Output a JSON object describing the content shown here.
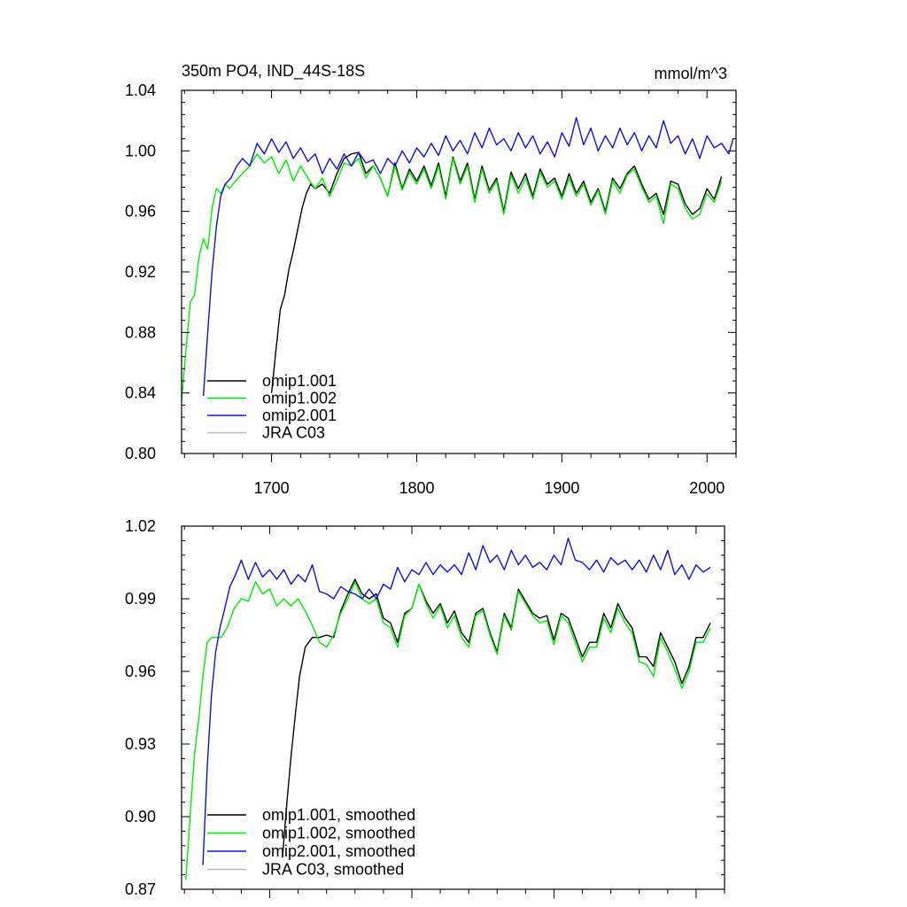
{
  "colors": {
    "omip1_001": "#000000",
    "omip1_002": "#00ee00",
    "omip2_001": "#1010dd",
    "jra_c03": "#bbbbbb",
    "axis": "#000000"
  },
  "chart_data": [
    {
      "type": "line",
      "title": "350m PO4, IND_44S-18S",
      "units_label": "mmol/m^3",
      "xlabel": "",
      "ylabel": "",
      "xlim": [
        1638,
        2020
      ],
      "ylim": [
        0.8,
        1.04
      ],
      "xticks": [
        1700,
        1800,
        1900,
        2000
      ],
      "xtick_labels": [
        "1700",
        "1800",
        "1900",
        "2000"
      ],
      "yticks": [
        0.8,
        0.84,
        0.88,
        0.92,
        0.96,
        1.0,
        1.04
      ],
      "ytick_labels": [
        "0.80",
        "0.84",
        "0.88",
        "0.92",
        "0.96",
        "1.00",
        "1.04"
      ],
      "grid": false,
      "legend_position": "bottom-left",
      "series": [
        {
          "name": "omip1.001",
          "color_key": "omip1_001",
          "x": [
            1700,
            1703,
            1706,
            1709,
            1712,
            1715,
            1718,
            1721,
            1724,
            1727,
            1730,
            1735,
            1740,
            1745,
            1750,
            1755,
            1760,
            1765,
            1770,
            1775,
            1780,
            1785,
            1790,
            1795,
            1800,
            1805,
            1810,
            1815,
            1820,
            1825,
            1830,
            1835,
            1840,
            1845,
            1850,
            1855,
            1860,
            1865,
            1870,
            1875,
            1880,
            1885,
            1890,
            1895,
            1900,
            1905,
            1910,
            1915,
            1920,
            1925,
            1930,
            1935,
            1940,
            1945,
            1950,
            1955,
            1960,
            1965,
            1970,
            1975,
            1980,
            1985,
            1990,
            1995,
            2000,
            2005,
            2010
          ],
          "y": [
            0.84,
            0.868,
            0.895,
            0.905,
            0.922,
            0.934,
            0.948,
            0.962,
            0.972,
            0.978,
            0.975,
            0.978,
            0.972,
            0.985,
            0.995,
            0.998,
            0.999,
            0.985,
            0.99,
            0.982,
            0.97,
            0.992,
            0.975,
            0.988,
            0.98,
            0.99,
            0.977,
            0.992,
            0.97,
            0.996,
            0.98,
            0.992,
            0.968,
            0.99,
            0.974,
            0.982,
            0.96,
            0.986,
            0.975,
            0.985,
            0.97,
            0.988,
            0.978,
            0.982,
            0.97,
            0.985,
            0.972,
            0.98,
            0.966,
            0.975,
            0.96,
            0.982,
            0.975,
            0.985,
            0.99,
            0.978,
            0.968,
            0.972,
            0.958,
            0.98,
            0.978,
            0.965,
            0.958,
            0.962,
            0.975,
            0.968,
            0.983
          ]
        },
        {
          "name": "omip1.002",
          "color_key": "omip1_002",
          "x": [
            1638,
            1641,
            1644,
            1647,
            1650,
            1653,
            1656,
            1659,
            1662,
            1665,
            1668,
            1671,
            1675,
            1680,
            1685,
            1690,
            1695,
            1700,
            1705,
            1710,
            1715,
            1720,
            1725,
            1730,
            1735,
            1740,
            1745,
            1750,
            1755,
            1760,
            1765,
            1770,
            1775,
            1780,
            1785,
            1790,
            1795,
            1800,
            1805,
            1810,
            1815,
            1820,
            1825,
            1830,
            1835,
            1840,
            1845,
            1850,
            1855,
            1860,
            1865,
            1870,
            1875,
            1880,
            1885,
            1890,
            1895,
            1900,
            1905,
            1910,
            1915,
            1920,
            1925,
            1930,
            1935,
            1940,
            1945,
            1950,
            1955,
            1960,
            1965,
            1970,
            1975,
            1980,
            1985,
            1990,
            1995,
            2000,
            2005,
            2010
          ],
          "y": [
            0.835,
            0.868,
            0.9,
            0.905,
            0.93,
            0.942,
            0.935,
            0.962,
            0.975,
            0.972,
            0.978,
            0.975,
            0.98,
            0.985,
            0.99,
            0.998,
            0.992,
            0.996,
            0.985,
            0.994,
            0.98,
            0.99,
            0.982,
            0.975,
            0.982,
            0.97,
            0.98,
            0.992,
            0.99,
            0.995,
            0.982,
            0.99,
            0.982,
            0.97,
            0.99,
            0.974,
            0.986,
            0.978,
            0.988,
            0.975,
            0.99,
            0.968,
            0.995,
            0.978,
            0.99,
            0.966,
            0.988,
            0.972,
            0.98,
            0.958,
            0.984,
            0.972,
            0.982,
            0.968,
            0.986,
            0.976,
            0.98,
            0.968,
            0.982,
            0.97,
            0.978,
            0.964,
            0.974,
            0.958,
            0.98,
            0.972,
            0.984,
            0.988,
            0.976,
            0.966,
            0.97,
            0.952,
            0.978,
            0.975,
            0.962,
            0.955,
            0.958,
            0.972,
            0.966,
            0.98
          ]
        },
        {
          "name": "omip2.001",
          "color_key": "omip2_001",
          "x": [
            1653,
            1656,
            1659,
            1662,
            1665,
            1668,
            1672,
            1676,
            1680,
            1685,
            1690,
            1695,
            1700,
            1705,
            1710,
            1715,
            1720,
            1725,
            1730,
            1735,
            1740,
            1745,
            1750,
            1755,
            1760,
            1765,
            1770,
            1775,
            1780,
            1785,
            1790,
            1795,
            1800,
            1805,
            1810,
            1815,
            1820,
            1825,
            1830,
            1835,
            1840,
            1845,
            1850,
            1855,
            1860,
            1865,
            1870,
            1875,
            1880,
            1885,
            1890,
            1895,
            1900,
            1905,
            1910,
            1915,
            1920,
            1925,
            1930,
            1935,
            1940,
            1945,
            1950,
            1955,
            1960,
            1965,
            1970,
            1975,
            1980,
            1985,
            1990,
            1995,
            2000,
            2005,
            2010,
            2015,
            2018
          ],
          "y": [
            0.838,
            0.88,
            0.92,
            0.95,
            0.97,
            0.978,
            0.982,
            0.99,
            0.995,
            0.99,
            1.005,
            0.998,
            1.008,
            0.999,
            1.006,
            0.995,
            1.002,
            0.993,
            0.998,
            0.985,
            0.995,
            0.988,
            0.998,
            0.99,
            0.999,
            0.992,
            0.994,
            0.985,
            0.995,
            0.99,
            1.0,
            0.992,
            1.002,
            0.996,
            1.005,
            0.997,
            1.01,
            1.0,
            1.007,
            0.998,
            1.012,
            1.002,
            1.015,
            1.004,
            1.008,
            1.0,
            1.012,
            1.002,
            1.01,
            0.998,
            1.006,
            0.996,
            1.012,
            1.003,
            1.022,
            1.004,
            1.015,
            1.0,
            1.01,
            1.002,
            1.015,
            1.004,
            1.012,
            1.0,
            1.01,
            1.002,
            1.02,
            1.005,
            1.01,
            0.998,
            1.008,
            0.995,
            1.01,
            1.002,
            1.005,
            0.998,
            1.008
          ]
        },
        {
          "name": "JRA C03",
          "color_key": "jra_c03",
          "x": [],
          "y": []
        }
      ]
    },
    {
      "type": "line",
      "title": "",
      "xlabel": "",
      "ylabel": "",
      "xlim": [
        1638,
        2020
      ],
      "ylim": [
        0.87,
        1.02
      ],
      "xticks": [
        1700,
        1800,
        1900,
        2000
      ],
      "xtick_labels": [],
      "yticks": [
        0.87,
        0.9,
        0.93,
        0.96,
        0.99,
        1.02
      ],
      "ytick_labels": [
        "0.87",
        "0.90",
        "0.93",
        "0.96",
        "0.99",
        "1.02"
      ],
      "grid": false,
      "legend_position": "bottom-left",
      "series": [
        {
          "name": "omip1.001, smoothed",
          "color_key": "omip1_001",
          "x": [
            1709,
            1712,
            1715,
            1718,
            1721,
            1725,
            1730,
            1735,
            1740,
            1745,
            1750,
            1755,
            1760,
            1765,
            1770,
            1775,
            1780,
            1785,
            1790,
            1795,
            1800,
            1805,
            1810,
            1815,
            1820,
            1825,
            1830,
            1835,
            1840,
            1845,
            1850,
            1855,
            1860,
            1865,
            1870,
            1875,
            1880,
            1885,
            1890,
            1895,
            1900,
            1905,
            1910,
            1915,
            1920,
            1925,
            1930,
            1935,
            1940,
            1945,
            1950,
            1955,
            1960,
            1965,
            1970,
            1975,
            1980,
            1985,
            1990,
            1995,
            2000,
            2005,
            2010
          ],
          "y": [
            0.883,
            0.905,
            0.925,
            0.942,
            0.958,
            0.97,
            0.974,
            0.974,
            0.975,
            0.974,
            0.985,
            0.992,
            0.998,
            0.992,
            0.99,
            0.992,
            0.982,
            0.98,
            0.972,
            0.984,
            0.986,
            0.996,
            0.989,
            0.984,
            0.988,
            0.98,
            0.985,
            0.976,
            0.972,
            0.984,
            0.986,
            0.976,
            0.968,
            0.984,
            0.978,
            0.994,
            0.989,
            0.984,
            0.982,
            0.983,
            0.973,
            0.984,
            0.982,
            0.974,
            0.966,
            0.972,
            0.972,
            0.984,
            0.978,
            0.988,
            0.982,
            0.978,
            0.966,
            0.966,
            0.962,
            0.976,
            0.97,
            0.964,
            0.955,
            0.962,
            0.974,
            0.974,
            0.98
          ]
        },
        {
          "name": "omip1.002, smoothed",
          "color_key": "omip1_002",
          "x": [
            1641,
            1644,
            1647,
            1650,
            1653,
            1656,
            1659,
            1662,
            1666,
            1670,
            1675,
            1680,
            1685,
            1690,
            1695,
            1700,
            1705,
            1710,
            1715,
            1720,
            1725,
            1730,
            1735,
            1740,
            1745,
            1750,
            1755,
            1760,
            1765,
            1770,
            1775,
            1780,
            1785,
            1790,
            1795,
            1800,
            1805,
            1810,
            1815,
            1820,
            1825,
            1830,
            1835,
            1840,
            1845,
            1850,
            1855,
            1860,
            1865,
            1870,
            1875,
            1880,
            1885,
            1890,
            1895,
            1900,
            1905,
            1910,
            1915,
            1920,
            1925,
            1930,
            1935,
            1940,
            1945,
            1950,
            1955,
            1960,
            1965,
            1970,
            1975,
            1980,
            1985,
            1990,
            1995,
            2000,
            2005,
            2010
          ],
          "y": [
            0.874,
            0.9,
            0.925,
            0.94,
            0.958,
            0.972,
            0.974,
            0.974,
            0.974,
            0.978,
            0.986,
            0.99,
            0.989,
            0.997,
            0.992,
            0.994,
            0.987,
            0.99,
            0.987,
            0.99,
            0.985,
            0.979,
            0.972,
            0.97,
            0.975,
            0.984,
            0.99,
            0.997,
            0.99,
            0.988,
            0.99,
            0.98,
            0.978,
            0.97,
            0.983,
            0.986,
            0.996,
            0.988,
            0.982,
            0.987,
            0.978,
            0.983,
            0.974,
            0.97,
            0.983,
            0.985,
            0.975,
            0.967,
            0.983,
            0.977,
            0.993,
            0.988,
            0.983,
            0.98,
            0.981,
            0.971,
            0.983,
            0.98,
            0.972,
            0.964,
            0.97,
            0.97,
            0.982,
            0.976,
            0.986,
            0.98,
            0.976,
            0.964,
            0.963,
            0.958,
            0.974,
            0.968,
            0.961,
            0.953,
            0.96,
            0.972,
            0.972,
            0.978
          ]
        },
        {
          "name": "omip2.001, smoothed",
          "color_key": "omip2_001",
          "x": [
            1653,
            1656,
            1659,
            1662,
            1665,
            1668,
            1672,
            1676,
            1680,
            1685,
            1690,
            1695,
            1700,
            1705,
            1710,
            1715,
            1720,
            1725,
            1730,
            1735,
            1740,
            1745,
            1750,
            1755,
            1760,
            1765,
            1770,
            1775,
            1780,
            1785,
            1790,
            1795,
            1800,
            1805,
            1810,
            1815,
            1820,
            1825,
            1830,
            1835,
            1840,
            1845,
            1850,
            1855,
            1860,
            1865,
            1870,
            1875,
            1880,
            1885,
            1890,
            1895,
            1900,
            1905,
            1910,
            1915,
            1920,
            1925,
            1930,
            1935,
            1940,
            1945,
            1950,
            1955,
            1960,
            1965,
            1970,
            1975,
            1980,
            1985,
            1990,
            1995,
            2000,
            2005,
            2010
          ],
          "y": [
            0.88,
            0.92,
            0.95,
            0.968,
            0.978,
            0.985,
            0.995,
            1.0,
            1.006,
            0.998,
            1.005,
            0.999,
            1.002,
            0.998,
            1.002,
            0.996,
            1.0,
            0.997,
            1.004,
            0.993,
            0.992,
            0.99,
            0.995,
            0.993,
            0.992,
            0.99,
            0.994,
            0.99,
            0.996,
            0.994,
            1.003,
            0.997,
            1.002,
            1.0,
            1.005,
            1.0,
            1.004,
            1.001,
            1.004,
            1.0,
            1.009,
            1.002,
            1.012,
            1.005,
            1.008,
            1.002,
            1.01,
            1.004,
            1.008,
            1.003,
            1.005,
            1.002,
            1.008,
            1.004,
            1.015,
            1.006,
            1.005,
            1.002,
            1.006,
            1.001,
            1.007,
            1.004,
            1.006,
            1.002,
            1.006,
            1.001,
            1.008,
            1.002,
            1.01,
            1.0,
            1.004,
            0.998,
            1.004,
            1.001,
            1.003
          ]
        },
        {
          "name": "JRA C03, smoothed",
          "color_key": "jra_c03",
          "x": [],
          "y": []
        }
      ]
    }
  ]
}
